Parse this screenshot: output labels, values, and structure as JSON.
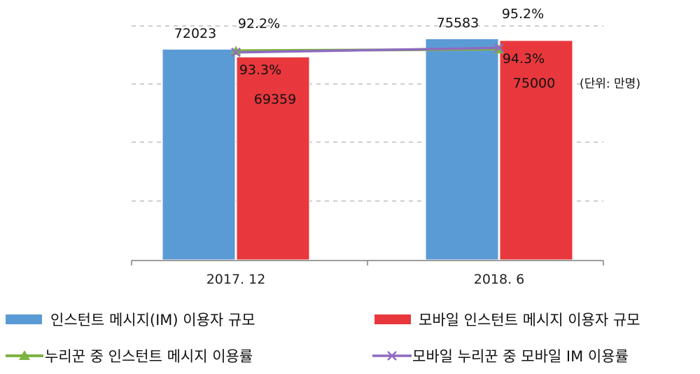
{
  "chart_data": {
    "type": "bar",
    "categories": [
      "2017. 12",
      "2018. 6"
    ],
    "series": [
      {
        "name": "인스턴트 메시지(IM) 이용자 규모",
        "type": "bar",
        "axis": "left",
        "color": "#5b9bd5",
        "values": [
          72023,
          75583
        ]
      },
      {
        "name": "모바일 인스턴트 메시지 이용자 규모",
        "type": "bar",
        "axis": "left",
        "color": "#e8383d",
        "values": [
          69359,
          75000
        ]
      },
      {
        "name": "누리꾼 중 인스턴트 메시지 이용률",
        "type": "line",
        "axis": "right",
        "color": "#7cb342",
        "marker": "triangle",
        "values": [
          93.3,
          94.3
        ]
      },
      {
        "name": "모바일 누리꾼 중 모바일 IM 이용률",
        "type": "line",
        "axis": "right",
        "color": "#8e6bbf",
        "marker": "x",
        "values": [
          92.2,
          95.2
        ]
      }
    ],
    "data_labels": {
      "bar_blue": [
        "72023",
        "75583"
      ],
      "bar_red": [
        "69359",
        "75000"
      ],
      "line_green": [
        "93.3%",
        "94.3%"
      ],
      "line_purple": [
        "92.2%",
        "95.2%"
      ]
    },
    "unit": "(단위: 만명)",
    "ylim": [
      0,
      80000
    ],
    "y2lim": [
      80,
      100
    ],
    "grid": true,
    "legend_position": "bottom"
  }
}
